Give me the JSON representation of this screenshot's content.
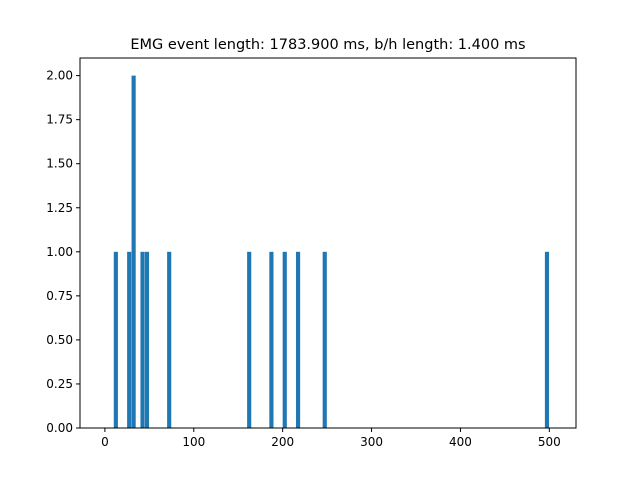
{
  "chart_data": {
    "type": "bar",
    "title": "EMG event length: 1783.900 ms, b/h length: 1.400 ms",
    "xlabel": "",
    "ylabel": "",
    "xlim": [
      -28,
      530
    ],
    "ylim": [
      0,
      2.1
    ],
    "x_ticks": [
      0,
      100,
      200,
      300,
      400,
      500
    ],
    "y_ticks": [
      0.0,
      0.25,
      0.5,
      0.75,
      1.0,
      1.25,
      1.5,
      1.75,
      2.0
    ],
    "x_tick_labels": [
      "0",
      "100",
      "200",
      "300",
      "400",
      "500"
    ],
    "y_tick_labels": [
      "0.00",
      "0.25",
      "0.50",
      "0.75",
      "1.00",
      "1.25",
      "1.50",
      "1.75",
      "2.00"
    ],
    "bin_width": 5,
    "bars": [
      {
        "x": 10,
        "value": 1
      },
      {
        "x": 25,
        "value": 1
      },
      {
        "x": 30,
        "value": 2
      },
      {
        "x": 40,
        "value": 1
      },
      {
        "x": 45,
        "value": 1
      },
      {
        "x": 70,
        "value": 1
      },
      {
        "x": 160,
        "value": 1
      },
      {
        "x": 185,
        "value": 1
      },
      {
        "x": 200,
        "value": 1
      },
      {
        "x": 215,
        "value": 1
      },
      {
        "x": 245,
        "value": 1
      },
      {
        "x": 495,
        "value": 1
      }
    ],
    "bar_color": "#1f77b4",
    "grid": false,
    "legend": "none"
  }
}
